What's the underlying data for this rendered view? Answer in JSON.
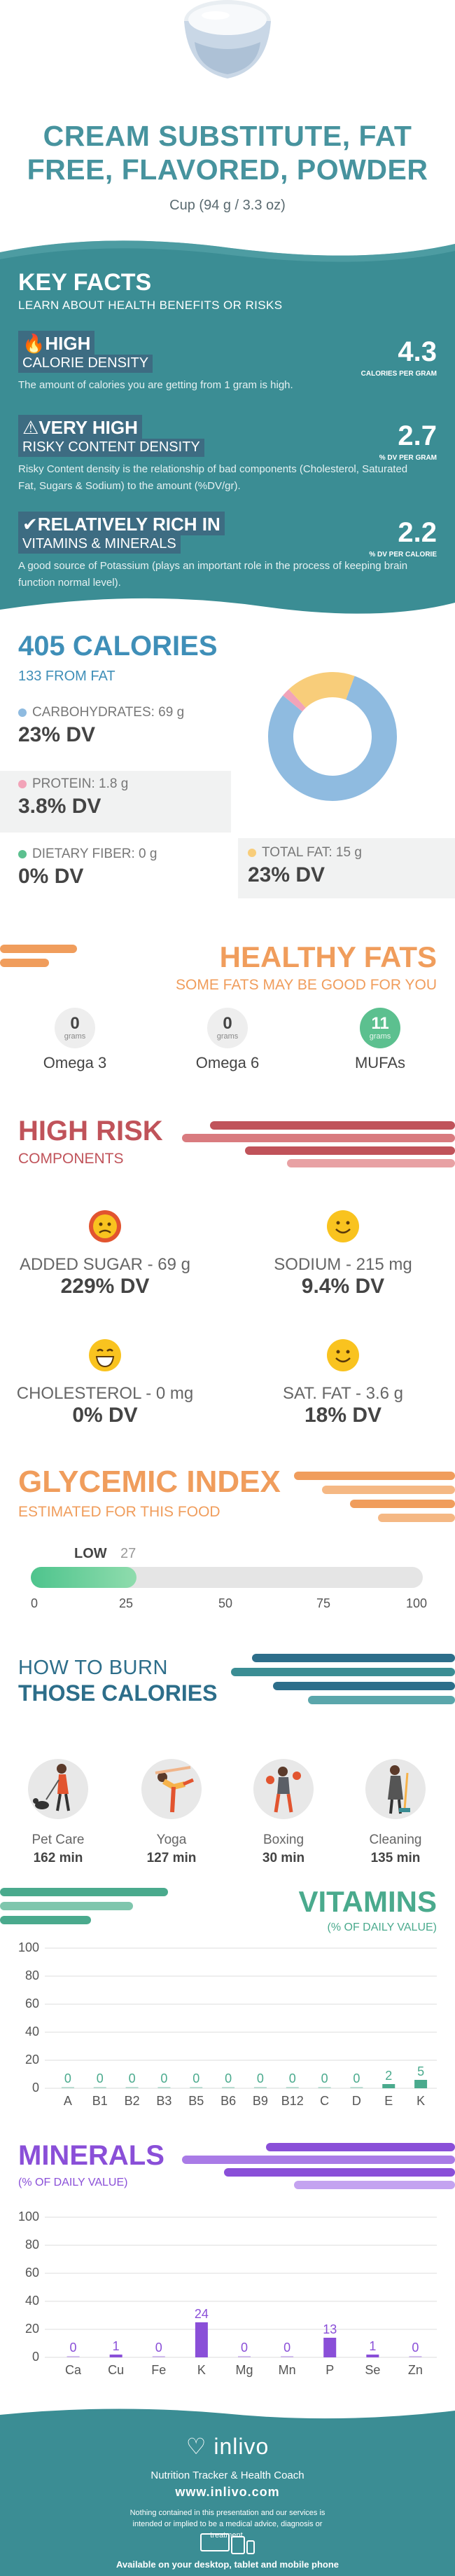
{
  "header": {
    "title_line1": "CREAM SUBSTITUTE, FAT",
    "title_line2": "FREE, FLAVORED, POWDER",
    "serving": "Cup (94 g / 3.3 oz)"
  },
  "key_facts": {
    "title": "KEY FACTS",
    "subtitle": "LEARN ABOUT HEALTH BENEFITS OR RISKS",
    "items": [
      {
        "icon": "fire-icon",
        "level": "HIGH",
        "metric": "CALORIE DENSITY",
        "value": "4.3",
        "unit": "CALORIES PER GRAM",
        "desc": "The amount of calories you are getting from 1 gram is high."
      },
      {
        "icon": "warning-icon",
        "level": "VERY HIGH",
        "metric": "RISKY CONTENT DENSITY",
        "value": "2.7",
        "unit": "% DV PER GRAM",
        "desc": "Risky Content density is the relationship of bad components (Cholesterol, Saturated Fat, Sugars & Sodium) to the amount (%DV/gr)."
      },
      {
        "icon": "check-icon",
        "level": "RELATIVELY RICH  IN",
        "metric": "VITAMINS & MINERALS",
        "value": "2.2",
        "unit": "% DV PER CALORIE",
        "desc": "A good source of Potassium (plays an important role in the process of keeping brain function normal level)."
      }
    ]
  },
  "calories": {
    "total": "405 CALORIES",
    "from_fat": "133 FROM FAT",
    "carbs": {
      "label": "CARBOHYDRATES: 69 g",
      "dv": "23% DV",
      "color": "#8fbbe0"
    },
    "protein": {
      "label": "PROTEIN: 1.8 g",
      "dv": "3.8% DV",
      "color": "#f2a3b8"
    },
    "fiber": {
      "label": "DIETARY FIBER: 0 g",
      "dv": "0% DV",
      "color": "#5cc08f"
    },
    "fat": {
      "label": "TOTAL FAT: 15 g",
      "dv": "23% DV",
      "color": "#f8cd7a"
    }
  },
  "healthy_fats": {
    "title": "HEALTHY FATS",
    "subtitle": "SOME FATS MAY BE GOOD FOR YOU",
    "unit": "grams",
    "items": [
      {
        "value": "0",
        "name": "Omega 3"
      },
      {
        "value": "0",
        "name": "Omega 6"
      },
      {
        "value": "11",
        "name": "MUFAs"
      }
    ]
  },
  "high_risk": {
    "title": "HIGH RISK",
    "subtitle": "COMPONENTS",
    "items": [
      {
        "label": "ADDED SUGAR - 69 g",
        "dv": "229% DV",
        "face": "angry-face-icon"
      },
      {
        "label": "SODIUM - 215 mg",
        "dv": "9.4% DV",
        "face": "smiley-face-icon"
      },
      {
        "label": "CHOLESTEROL - 0 mg",
        "dv": "0% DV",
        "face": "grin-face-icon"
      },
      {
        "label": "SAT. FAT - 3.6 g",
        "dv": "18% DV",
        "face": "smiley-face-icon"
      }
    ]
  },
  "glycemic": {
    "title": "GLYCEMIC INDEX",
    "subtitle": "ESTIMATED FOR THIS FOOD",
    "level": "LOW",
    "value": "27",
    "ticks": [
      "0",
      "25",
      "50",
      "75",
      "100"
    ]
  },
  "burn": {
    "title1": "HOW TO BURN",
    "title2": "THOSE CALORIES",
    "activities": [
      {
        "name": "Pet Care",
        "minutes": "162 min",
        "icon": "dog-walking-icon"
      },
      {
        "name": "Yoga",
        "minutes": "127 min",
        "icon": "yoga-icon"
      },
      {
        "name": "Boxing",
        "minutes": "30 min",
        "icon": "boxing-icon"
      },
      {
        "name": "Cleaning",
        "minutes": "135 min",
        "icon": "cleaning-icon"
      }
    ]
  },
  "vitamins": {
    "title": "VITAMINS",
    "subtitle": "(% OF DAILY VALUE)"
  },
  "minerals": {
    "title": "MINERALS",
    "subtitle": "(% OF DAILY VALUE)"
  },
  "chart_data": [
    {
      "type": "bar",
      "title": "VITAMINS",
      "categories": [
        "A",
        "B1",
        "B2",
        "B3",
        "B5",
        "B6",
        "B9",
        "B12",
        "C",
        "D",
        "E",
        "K"
      ],
      "values": [
        0,
        0,
        0,
        0,
        0,
        0,
        0,
        0,
        0,
        0,
        2,
        5
      ],
      "yticks": [
        "0",
        "20",
        "40",
        "60",
        "80",
        "100"
      ],
      "ylim": [
        0,
        100
      ],
      "grid": true,
      "color": "#4aaa8d"
    },
    {
      "type": "bar",
      "title": "MINERALS",
      "categories": [
        "Ca",
        "Cu",
        "Fe",
        "K",
        "Mg",
        "Mn",
        "P",
        "Se",
        "Zn"
      ],
      "values": [
        0,
        1,
        0,
        24,
        0,
        0,
        13,
        1,
        0
      ],
      "yticks": [
        "0",
        "20",
        "40",
        "60",
        "80",
        "100"
      ],
      "ylim": [
        0,
        100
      ],
      "grid": true,
      "color": "#8a4fd8"
    },
    {
      "type": "pie",
      "title": "",
      "labels": [
        "Carbohydrates",
        "Protein",
        "Dietary fiber",
        "Total fat"
      ],
      "values": [
        69,
        1.8,
        0,
        15
      ],
      "colors": [
        "#8fbbe0",
        "#f2a3b8",
        "#5cc08f",
        "#f8cd7a"
      ]
    }
  ],
  "footer": {
    "brand": "inlivo",
    "tagline": "Nutrition Tracker & Health Coach",
    "url": "www.inlivo.com",
    "disclaimer": "Nothing contained in this presentation and our services is intended or implied to be a medical advice, diagnosis or treatment.",
    "available": "Available on your desktop, tablet and mobile phone"
  }
}
